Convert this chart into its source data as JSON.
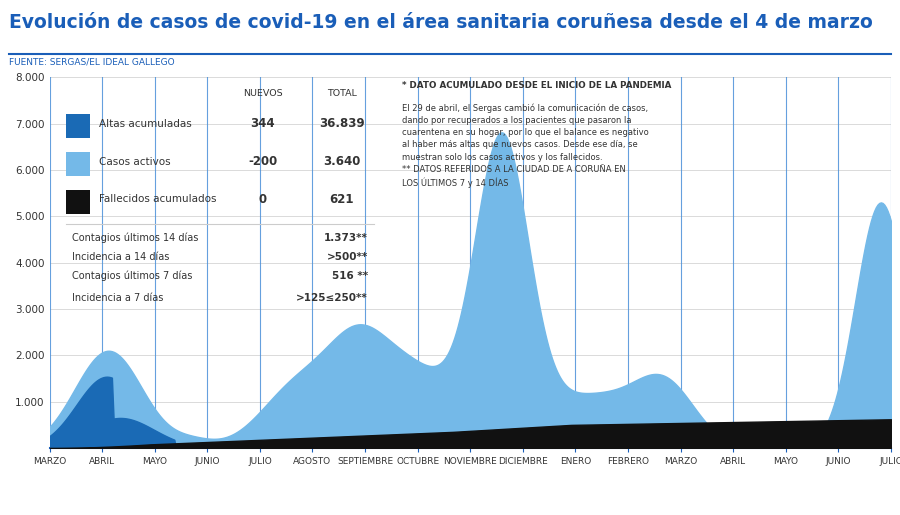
{
  "title": "Evolución de casos de covid-19 en el área sanitaria coruñesa desde el 4 de marzo",
  "subtitle": "FUENTE: SERGAS/EL IDEAL GALLEGO",
  "title_color": "#1a5eb8",
  "subtitle_color": "#1a5eb8",
  "background_color": "#ffffff",
  "ylim": [
    0,
    8000
  ],
  "ytick_labels": [
    "1.000",
    "2.000",
    "3.000",
    "4.000",
    "5.000",
    "6.000",
    "7.000",
    "8.000"
  ],
  "ytick_vals": [
    1000,
    2000,
    3000,
    4000,
    5000,
    6000,
    7000,
    8000
  ],
  "month_labels": [
    "MARZO",
    "ABRIL",
    "MAYO",
    "JUNIO",
    "JULIO",
    "AGOSTO",
    "SEPTIEMBRE",
    "OCTUBRE",
    "NOVIEMBRE",
    "DICIEMBRE",
    "ENERO",
    "FEBRERO",
    "MARZO",
    "ABRIL",
    "MAYO",
    "JUNIO",
    "JULIO"
  ],
  "color_active": "#74b9e8",
  "color_altas": "#1a6ab5",
  "color_deceased": "#111111",
  "grid_color": "#4a90d9",
  "legend_rows": [
    {
      "color": "#1a6ab5",
      "name": "Altas acumuladas",
      "nuevos": "344",
      "total": "36.839"
    },
    {
      "color": "#74b9e8",
      "name": "Casos activos",
      "nuevos": "-200",
      "total": "3.640"
    },
    {
      "color": "#111111",
      "name": "Fallecidos acumulados",
      "nuevos": "0",
      "total": "621"
    }
  ],
  "extra_rows": [
    {
      "label": "Contagios últimos 14 días",
      "value": "1.373**"
    },
    {
      "label": "Incidencia a 14 días",
      "value": ">500**"
    },
    {
      "label": "Contagios últimos 7 días",
      "value": "516 **"
    },
    {
      "label": "Incidencia a 7 días",
      "value": ">125≤250**"
    }
  ],
  "ann_title": "* DATO ACUMULADO DESDE EL INICIO DE LA PANDEMIA",
  "ann_text1": "El 29 de abril, el Sergas cambió la comunicación de casos,",
  "ann_text2": "dando por recuperados a los pacientes que pasaron la",
  "ann_text3": "cuarentena en su hogar, por lo que el balance es negativo",
  "ann_text4": "al haber más altas que nuevos casos. Desde ese día, se",
  "ann_text5": "muestran solo los casos activos y los fallecidos.",
  "ann_text6": "** DATOS REFERIDOS A LA CIUDAD DE A CORUÑA EN",
  "ann_text7": "LOS ÚLTIMOS 7 y 14 DÍAS"
}
